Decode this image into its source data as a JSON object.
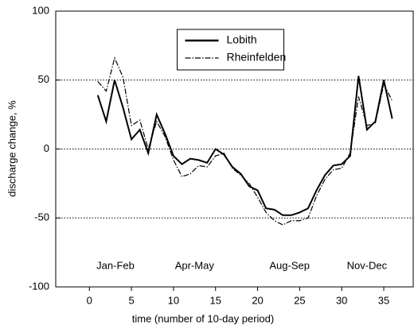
{
  "chart_data": {
    "type": "line",
    "x": [
      1,
      2,
      3,
      4,
      5,
      6,
      7,
      8,
      9,
      10,
      11,
      12,
      13,
      14,
      15,
      16,
      17,
      18,
      19,
      20,
      21,
      22,
      23,
      24,
      25,
      26,
      27,
      28,
      29,
      30,
      31,
      32,
      33,
      34,
      35,
      36
    ],
    "series": [
      {
        "name": "Lobith",
        "color": "#000000",
        "style": "solid",
        "values": [
          39,
          20,
          50,
          30,
          7,
          14,
          -3,
          25,
          11,
          -5,
          -11,
          -7,
          -8,
          -10,
          0,
          -4,
          -13,
          -18,
          -27,
          -30,
          -43,
          -44,
          -48,
          -48,
          -46,
          -43,
          -30,
          -19,
          -12,
          -11,
          -5,
          53,
          14,
          20,
          50,
          22
        ]
      },
      {
        "name": "Rheinfelden",
        "color": "#000000",
        "style": "dashdot",
        "values": [
          49,
          42,
          66,
          52,
          17,
          21,
          0,
          20,
          9,
          -8,
          -20,
          -18,
          -12,
          -13,
          -5,
          -3,
          -14,
          -19,
          -25,
          -35,
          -46,
          -52,
          -55,
          -52,
          -52,
          -50,
          -34,
          -22,
          -15,
          -14,
          -3,
          38,
          17,
          19,
          47,
          35
        ]
      }
    ],
    "xlabel": "time (number of 10-day period)",
    "ylabel": "discharge change, %",
    "xlim": [
      -4,
      38.5
    ],
    "xticks": [
      0,
      5,
      10,
      15,
      20,
      25,
      30,
      35
    ],
    "ylim": [
      -100,
      100
    ],
    "yticks": [
      -100,
      -50,
      0,
      50,
      100
    ],
    "grid": true,
    "legend": "top-center",
    "annotations": [
      {
        "text": "Jan-Feb",
        "x": 3.1,
        "y": -85
      },
      {
        "text": "Apr-May",
        "x": 12.5,
        "y": -85
      },
      {
        "text": "Aug-Sep",
        "x": 23.8,
        "y": -85
      },
      {
        "text": "Nov-Dec",
        "x": 33,
        "y": -85
      }
    ]
  }
}
